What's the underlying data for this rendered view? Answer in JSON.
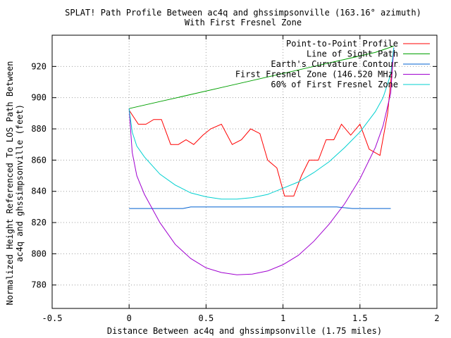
{
  "chart_data": {
    "type": "line",
    "title": "SPLAT! Path Profile Between ac4q and ghssimpsonville (163.16° azimuth)",
    "subtitle": "With First Fresnel Zone",
    "xlabel": "Distance Between ac4q and ghssimpsonville (1.75 miles)",
    "ylabel": "Normalized Height Referenced To LOS Path Between",
    "ylabel2": "ac4q and ghssimpsonville (feet)",
    "xlim": [
      -0.5,
      2
    ],
    "ylim": [
      765,
      940
    ],
    "grid": true,
    "legend_position": "top-right",
    "xticks": [
      -0.5,
      0,
      0.5,
      1,
      1.5,
      2
    ],
    "xtick_labels": [
      "-0.5",
      "0",
      "0.5",
      "1",
      "1.5",
      "2"
    ],
    "yticks": [
      780,
      800,
      820,
      840,
      860,
      880,
      900,
      920
    ],
    "ytick_labels": [
      "780",
      "800",
      "820",
      "840",
      "860",
      "880",
      "900",
      "920"
    ],
    "series": [
      {
        "name": "Point-to-Point Profile",
        "color": "#ff0000",
        "points": [
          [
            0,
            892
          ],
          [
            0.06,
            883
          ],
          [
            0.11,
            883
          ],
          [
            0.16,
            886
          ],
          [
            0.21,
            886
          ],
          [
            0.27,
            870
          ],
          [
            0.32,
            870
          ],
          [
            0.37,
            873
          ],
          [
            0.42,
            870
          ],
          [
            0.48,
            876
          ],
          [
            0.53,
            880
          ],
          [
            0.6,
            883
          ],
          [
            0.67,
            870
          ],
          [
            0.73,
            873
          ],
          [
            0.79,
            880
          ],
          [
            0.85,
            877
          ],
          [
            0.9,
            860
          ],
          [
            0.96,
            855
          ],
          [
            1.01,
            837
          ],
          [
            1.07,
            837
          ],
          [
            1.12,
            850
          ],
          [
            1.17,
            860
          ],
          [
            1.23,
            860
          ],
          [
            1.28,
            873
          ],
          [
            1.33,
            873
          ],
          [
            1.38,
            883
          ],
          [
            1.44,
            876
          ],
          [
            1.5,
            883
          ],
          [
            1.56,
            867
          ],
          [
            1.63,
            863
          ],
          [
            1.68,
            890
          ],
          [
            1.72,
            930
          ]
        ]
      },
      {
        "name": "Line of Sight Path",
        "color": "#00a000",
        "points": [
          [
            0,
            893
          ],
          [
            0.2,
            897.5
          ],
          [
            0.4,
            902
          ],
          [
            0.6,
            906.5
          ],
          [
            0.8,
            911
          ],
          [
            1.0,
            915.5
          ],
          [
            1.2,
            920
          ],
          [
            1.4,
            924.5
          ],
          [
            1.6,
            929
          ],
          [
            1.72,
            933
          ]
        ]
      },
      {
        "name": "Earth's Curvature Contour",
        "color": "#0060d0",
        "points": [
          [
            0,
            829
          ],
          [
            0.35,
            829
          ],
          [
            0.4,
            830
          ],
          [
            1.35,
            830
          ],
          [
            1.45,
            829
          ],
          [
            1.7,
            829
          ]
        ]
      },
      {
        "name": "First Fresnel Zone (146.520 MHz)",
        "color": "#a000d0",
        "points": [
          [
            0,
            893
          ],
          [
            0.02,
            865
          ],
          [
            0.05,
            850
          ],
          [
            0.1,
            838
          ],
          [
            0.2,
            820
          ],
          [
            0.3,
            806
          ],
          [
            0.4,
            797
          ],
          [
            0.5,
            791
          ],
          [
            0.6,
            788
          ],
          [
            0.7,
            786.5
          ],
          [
            0.8,
            787
          ],
          [
            0.9,
            789
          ],
          [
            1.0,
            793
          ],
          [
            1.1,
            799
          ],
          [
            1.2,
            808
          ],
          [
            1.3,
            819
          ],
          [
            1.4,
            832
          ],
          [
            1.5,
            848
          ],
          [
            1.6,
            868
          ],
          [
            1.65,
            882
          ],
          [
            1.7,
            903
          ],
          [
            1.72,
            932
          ]
        ]
      },
      {
        "name": "60% of First Fresnel Zone",
        "color": "#00d0d0",
        "points": [
          [
            0,
            893
          ],
          [
            0.02,
            878
          ],
          [
            0.05,
            869
          ],
          [
            0.1,
            862
          ],
          [
            0.2,
            851
          ],
          [
            0.3,
            844
          ],
          [
            0.4,
            839
          ],
          [
            0.5,
            836.5
          ],
          [
            0.6,
            835
          ],
          [
            0.7,
            835
          ],
          [
            0.8,
            836
          ],
          [
            0.9,
            838
          ],
          [
            1.0,
            842
          ],
          [
            1.1,
            846
          ],
          [
            1.2,
            852
          ],
          [
            1.3,
            859
          ],
          [
            1.4,
            868
          ],
          [
            1.5,
            878
          ],
          [
            1.6,
            891
          ],
          [
            1.65,
            900
          ],
          [
            1.7,
            915
          ],
          [
            1.72,
            932
          ]
        ]
      }
    ]
  }
}
